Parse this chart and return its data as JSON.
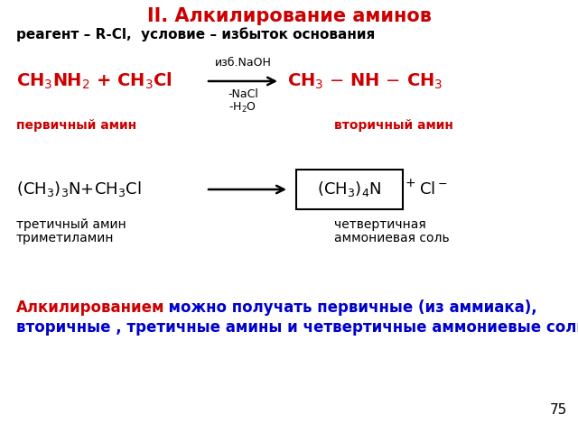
{
  "title": "II. Алкилирование аминов",
  "subtitle": "реагент – R-Cl,  условие – избыток основания",
  "title_color": "#cc0000",
  "subtitle_color": "#000000",
  "red_color": "#cc0000",
  "black_color": "#000000",
  "blue_color": "#0000cc",
  "bg_color": "#ffffff",
  "page_number": "75"
}
